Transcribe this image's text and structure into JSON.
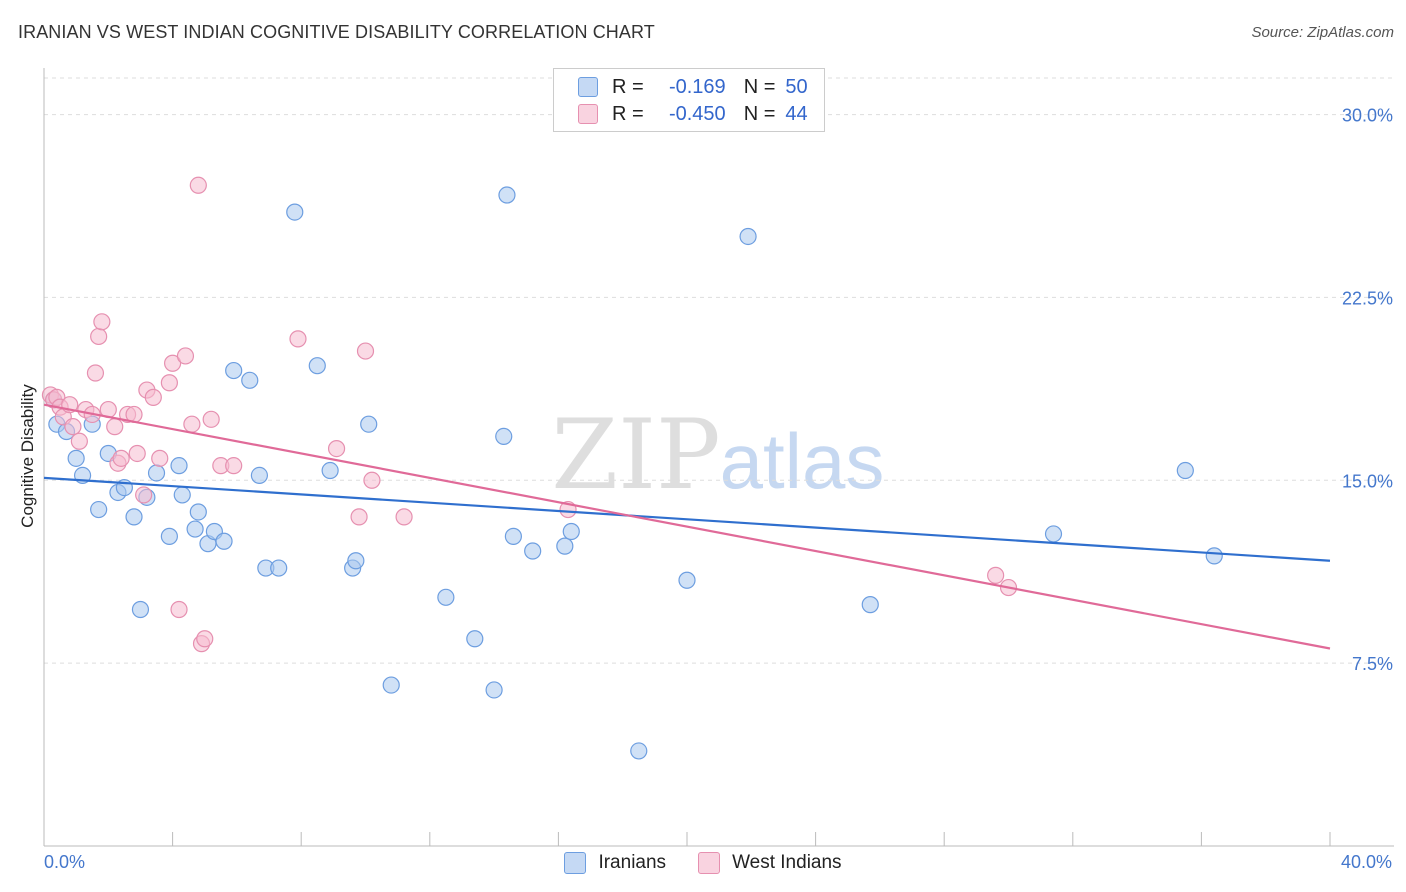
{
  "title": "IRANIAN VS WEST INDIAN COGNITIVE DISABILITY CORRELATION CHART",
  "source": "Source: ZipAtlas.com",
  "watermark": {
    "zip": "ZIP",
    "atlas": "atlas"
  },
  "colors": {
    "blue_fill": "#aac8ee",
    "blue_stroke": "#6d9ee0",
    "blue_line": "#2f6fce",
    "pink_fill": "#f5bcd0",
    "pink_stroke": "#e690b0",
    "pink_line": "#e06a98",
    "axis_text": "#4477cc",
    "grid": "#dddddd"
  },
  "legend": {
    "rows": [
      {
        "r_label": "R =",
        "r_value": "-0.169",
        "n_label": "N =",
        "n_value": "50"
      },
      {
        "r_label": "R =",
        "r_value": "-0.450",
        "n_label": "N =",
        "n_value": "44"
      }
    ]
  },
  "chart_data": {
    "type": "scatter",
    "title": "IRANIAN VS WEST INDIAN COGNITIVE DISABILITY CORRELATION CHART",
    "xlabel": "",
    "ylabel": "Cognitive Disability",
    "xlim": [
      0,
      40
    ],
    "ylim": [
      0,
      31.5
    ],
    "x_tick_labels": [
      "0.0%",
      "40.0%"
    ],
    "y_ticks": [
      7.5,
      15.0,
      22.5,
      30.0
    ],
    "y_tick_labels": [
      "7.5%",
      "15.0%",
      "22.5%",
      "30.0%"
    ],
    "grid": true,
    "legend_position": "bottom-center",
    "series": [
      {
        "name": "Iranians",
        "r": -0.169,
        "n": 50,
        "trend": {
          "x": [
            0,
            40
          ],
          "y": [
            15.1,
            11.7
          ]
        },
        "points": [
          [
            0.3,
            18.3
          ],
          [
            0.4,
            17.3
          ],
          [
            0.7,
            17.0
          ],
          [
            1.0,
            15.9
          ],
          [
            1.2,
            15.2
          ],
          [
            1.5,
            17.3
          ],
          [
            1.7,
            13.8
          ],
          [
            2.0,
            16.1
          ],
          [
            2.3,
            14.5
          ],
          [
            2.5,
            14.7
          ],
          [
            2.8,
            13.5
          ],
          [
            3.0,
            9.7
          ],
          [
            3.2,
            14.3
          ],
          [
            3.5,
            15.3
          ],
          [
            3.9,
            12.7
          ],
          [
            4.2,
            15.6
          ],
          [
            4.3,
            14.4
          ],
          [
            4.7,
            13.0
          ],
          [
            4.8,
            13.7
          ],
          [
            5.1,
            12.4
          ],
          [
            5.3,
            12.9
          ],
          [
            5.6,
            12.5
          ],
          [
            5.9,
            19.5
          ],
          [
            6.4,
            19.1
          ],
          [
            6.7,
            15.2
          ],
          [
            6.9,
            11.4
          ],
          [
            7.3,
            11.4
          ],
          [
            7.8,
            26.0
          ],
          [
            8.5,
            19.7
          ],
          [
            8.9,
            15.4
          ],
          [
            9.6,
            11.4
          ],
          [
            9.7,
            11.7
          ],
          [
            10.1,
            17.3
          ],
          [
            10.8,
            6.6
          ],
          [
            12.5,
            10.2
          ],
          [
            13.4,
            8.5
          ],
          [
            14.0,
            6.4
          ],
          [
            14.3,
            16.8
          ],
          [
            14.4,
            26.7
          ],
          [
            14.6,
            12.7
          ],
          [
            15.2,
            12.1
          ],
          [
            16.2,
            12.3
          ],
          [
            16.4,
            12.9
          ],
          [
            18.5,
            3.9
          ],
          [
            20.0,
            10.9
          ],
          [
            21.9,
            25.0
          ],
          [
            25.7,
            9.9
          ],
          [
            31.4,
            12.8
          ],
          [
            35.5,
            15.4
          ],
          [
            36.4,
            11.9
          ]
        ]
      },
      {
        "name": "West Indians",
        "r": -0.45,
        "n": 44,
        "trend": {
          "x": [
            0,
            40
          ],
          "y": [
            18.1,
            8.1
          ]
        },
        "points": [
          [
            0.2,
            18.5
          ],
          [
            0.3,
            18.3
          ],
          [
            0.4,
            18.4
          ],
          [
            0.5,
            18.0
          ],
          [
            0.6,
            17.6
          ],
          [
            0.8,
            18.1
          ],
          [
            0.9,
            17.2
          ],
          [
            1.1,
            16.6
          ],
          [
            1.3,
            17.9
          ],
          [
            1.5,
            17.7
          ],
          [
            1.6,
            19.4
          ],
          [
            1.7,
            20.9
          ],
          [
            1.8,
            21.5
          ],
          [
            2.0,
            17.9
          ],
          [
            2.2,
            17.2
          ],
          [
            2.3,
            15.7
          ],
          [
            2.4,
            15.9
          ],
          [
            2.6,
            17.7
          ],
          [
            2.8,
            17.7
          ],
          [
            2.9,
            16.1
          ],
          [
            3.1,
            14.4
          ],
          [
            3.2,
            18.7
          ],
          [
            3.4,
            18.4
          ],
          [
            3.6,
            15.9
          ],
          [
            3.9,
            19.0
          ],
          [
            4.0,
            19.8
          ],
          [
            4.2,
            9.7
          ],
          [
            4.4,
            20.1
          ],
          [
            4.6,
            17.3
          ],
          [
            4.8,
            27.1
          ],
          [
            4.9,
            8.3
          ],
          [
            5.0,
            8.5
          ],
          [
            5.2,
            17.5
          ],
          [
            5.5,
            15.6
          ],
          [
            5.9,
            15.6
          ],
          [
            7.9,
            20.8
          ],
          [
            9.1,
            16.3
          ],
          [
            9.8,
            13.5
          ],
          [
            10.0,
            20.3
          ],
          [
            10.2,
            15.0
          ],
          [
            11.2,
            13.5
          ],
          [
            16.3,
            13.8
          ],
          [
            29.6,
            11.1
          ],
          [
            30.0,
            10.6
          ]
        ]
      }
    ]
  }
}
